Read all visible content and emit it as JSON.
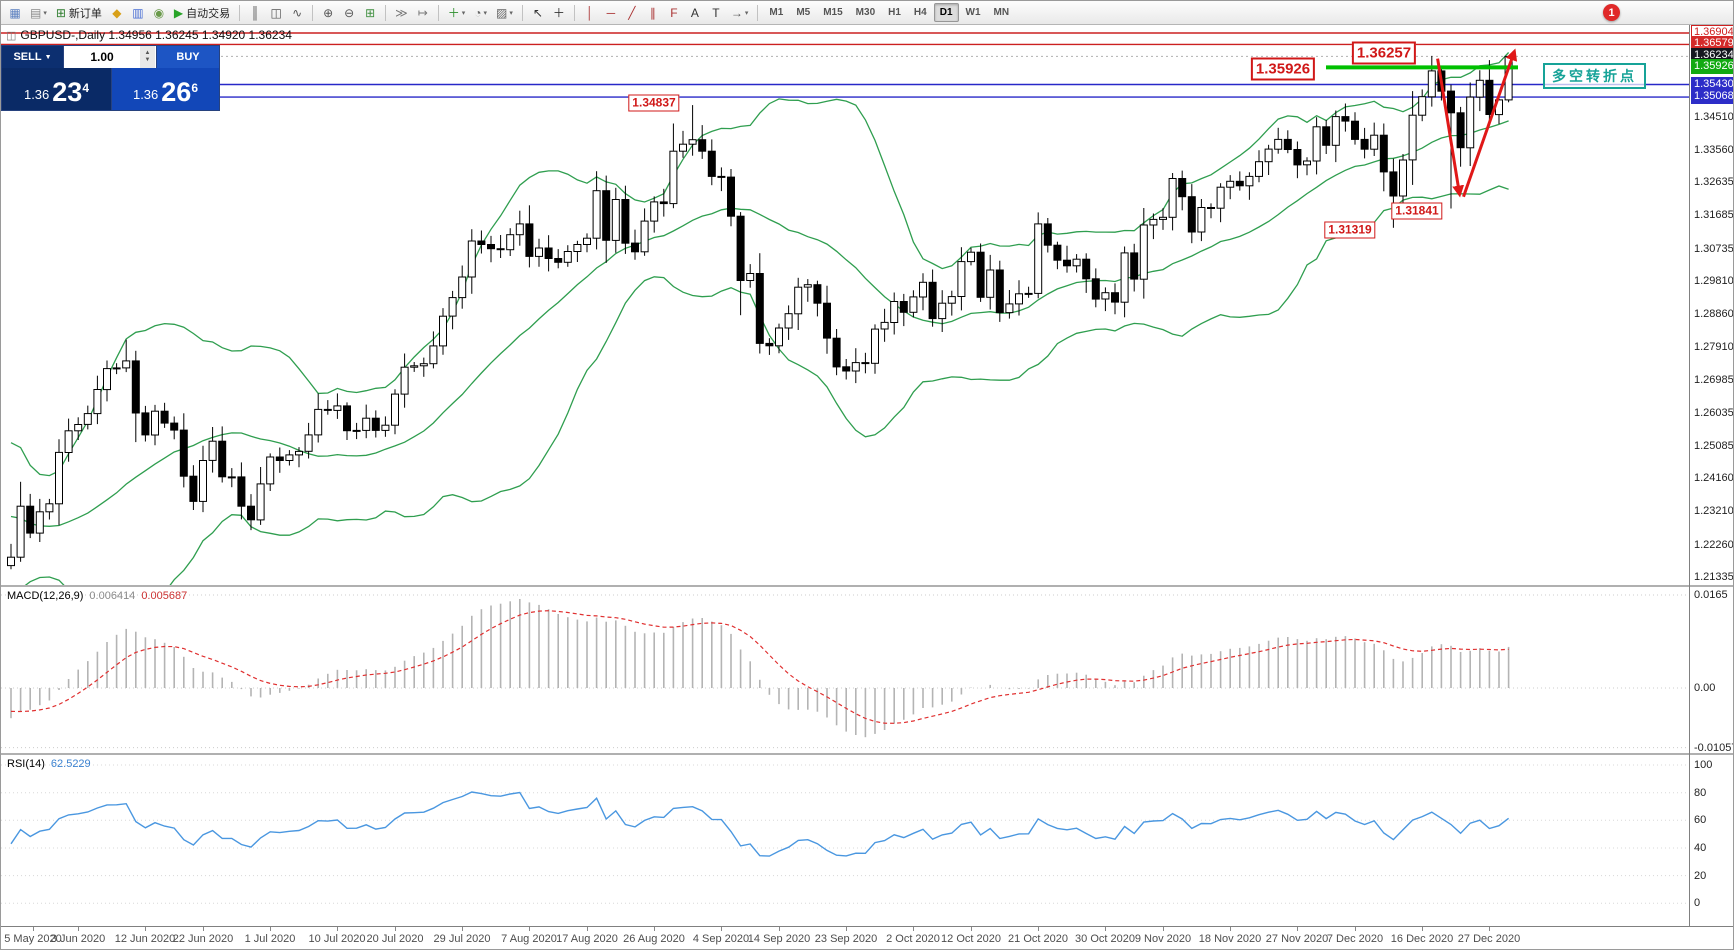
{
  "toolbar": {
    "notification_count": "1",
    "items": [
      {
        "kind": "icon",
        "name": "new-chart-icon",
        "glyph": "▦",
        "color": "#5a7fbf"
      },
      {
        "kind": "icon",
        "name": "profiles-icon",
        "glyph": "▤",
        "color": "#8a8a8a",
        "caret": true
      },
      {
        "kind": "icon",
        "name": "new-order-icon",
        "glyph": "⊞",
        "color": "#2f7d2f",
        "label": "新订单"
      },
      {
        "kind": "icon",
        "name": "market-watch-icon",
        "glyph": "◆",
        "color": "#d8a019"
      },
      {
        "kind": "icon",
        "name": "data-window-icon",
        "glyph": "▥",
        "color": "#4a6fd4"
      },
      {
        "kind": "icon",
        "name": "community-icon",
        "glyph": "◉",
        "color": "#6a9a4a"
      },
      {
        "kind": "icon",
        "name": "autotrading-icon",
        "glyph": "▶",
        "color": "#28a428",
        "label": "自动交易"
      },
      {
        "kind": "sep"
      },
      {
        "kind": "icon",
        "name": "bar-chart-icon",
        "glyph": "║",
        "color": "#555555"
      },
      {
        "kind": "icon",
        "name": "candlestick-chart-icon",
        "glyph": "◫",
        "color": "#555555"
      },
      {
        "kind": "icon",
        "name": "line-chart-icon",
        "glyph": "∿",
        "color": "#555555"
      },
      {
        "kind": "sep"
      },
      {
        "kind": "icon",
        "name": "zoom-in-icon",
        "glyph": "⊕",
        "color": "#555555"
      },
      {
        "kind": "icon",
        "name": "zoom-out-icon",
        "glyph": "⊖",
        "color": "#555555"
      },
      {
        "kind": "icon",
        "name": "tile-windows-icon",
        "glyph": "⊞",
        "color": "#3f8f3f"
      },
      {
        "kind": "sep"
      },
      {
        "kind": "icon",
        "name": "auto-scroll-icon",
        "glyph": "≫",
        "color": "#777777"
      },
      {
        "kind": "icon",
        "name": "chart-shift-icon",
        "glyph": "↦",
        "color": "#777777"
      },
      {
        "kind": "sep"
      },
      {
        "kind": "icon",
        "name": "indicators-icon",
        "glyph": "＋",
        "color": "#2e8f2e",
        "caret": true
      },
      {
        "kind": "icon",
        "name": "periods-icon",
        "glyph": "◔",
        "color": "#666666",
        "caret": true
      },
      {
        "kind": "icon",
        "name": "templates-icon",
        "glyph": "▨",
        "color": "#666666",
        "caret": true
      },
      {
        "kind": "sep"
      },
      {
        "kind": "icon",
        "name": "cursor-icon",
        "glyph": "↖",
        "color": "#333333"
      },
      {
        "kind": "icon",
        "name": "crosshair-icon",
        "glyph": "＋",
        "color": "#333333"
      },
      {
        "kind": "sep"
      },
      {
        "kind": "icon",
        "name": "vertical-line-icon",
        "glyph": "│",
        "color": "#aa3333"
      },
      {
        "kind": "icon",
        "name": "horizontal-line-icon",
        "glyph": "─",
        "color": "#aa3333"
      },
      {
        "kind": "icon",
        "name": "trendline-icon",
        "glyph": "╱",
        "color": "#aa3333"
      },
      {
        "kind": "icon",
        "name": "equidistant-channel-icon",
        "glyph": "∥",
        "color": "#aa3333"
      },
      {
        "kind": "icon",
        "name": "fibonacci-icon",
        "glyph": "F",
        "color": "#aa3333"
      },
      {
        "kind": "icon",
        "name": "text-icon",
        "glyph": "A",
        "color": "#333333"
      },
      {
        "kind": "icon",
        "name": "text-label-icon",
        "glyph": "T",
        "color": "#333333"
      },
      {
        "kind": "icon",
        "name": "arrows-icon",
        "glyph": "→",
        "color": "#555555",
        "caret": true
      },
      {
        "kind": "sep"
      },
      {
        "kind": "tf",
        "label": "M1"
      },
      {
        "kind": "tf",
        "label": "M5"
      },
      {
        "kind": "tf",
        "label": "M15"
      },
      {
        "kind": "tf",
        "label": "M30"
      },
      {
        "kind": "tf",
        "label": "H1"
      },
      {
        "kind": "tf",
        "label": "H4"
      },
      {
        "kind": "tf",
        "label": "D1",
        "active": true
      },
      {
        "kind": "tf",
        "label": "W1"
      },
      {
        "kind": "tf",
        "label": "MN"
      }
    ]
  },
  "chart": {
    "symbol_line": "GBPUSD-,Daily  1.34956 1.36245 1.34920 1.36234"
  },
  "trade_panel": {
    "sell_label": "SELL",
    "buy_label": "BUY",
    "volume": "1.00",
    "sell_big": "1.36",
    "sell_pips": "23",
    "sell_sup": "4",
    "buy_big": "1.36",
    "buy_pips": "26",
    "buy_sup": "6"
  },
  "macd": {
    "title": "MACD(12,26,9)",
    "value_main": "0.006414",
    "value_signal": "0.005687"
  },
  "rsi": {
    "title": "RSI(14)",
    "value": "62.5229"
  },
  "axes": {
    "price_ticks": [
      1.3451,
      1.3356,
      1.32635,
      1.31685,
      1.30735,
      1.2981,
      1.2886,
      1.2791,
      1.26985,
      1.26035,
      1.25085,
      1.2416,
      1.2321,
      1.2226,
      1.21335
    ],
    "price_markers": [
      {
        "text": "1.36904",
        "price": 1.36904,
        "bg": "#ffffff",
        "fg": "#d02020",
        "border": "#d02020"
      },
      {
        "text": "1.36579",
        "price": 1.36579,
        "bg": "#d42a2a",
        "fg": "#ffffff",
        "border": "#d42a2a"
      },
      {
        "text": "1.36234",
        "price": 1.36234,
        "bg": "#15171f",
        "fg": "#ffffff",
        "border": "#15171f"
      },
      {
        "text": "1.35926",
        "price": 1.35926,
        "bg": "#12a912",
        "fg": "#ffffff",
        "border": "#12a912"
      },
      {
        "text": "1.35430",
        "price": 1.3543,
        "bg": "#2d2dc8",
        "fg": "#ffffff",
        "border": "#2d2dc8"
      },
      {
        "text": "1.35068",
        "price": 1.35068,
        "bg": "#2d2dc8",
        "fg": "#ffffff",
        "border": "#2d2dc8"
      }
    ],
    "macd_ticks": [
      {
        "text": "0.0165",
        "v": 0.0165
      },
      {
        "text": "0.00",
        "v": 0
      },
      {
        "text": "-0.010571",
        "v": -0.010571
      }
    ],
    "rsi_ticks": [
      100,
      80,
      60,
      40,
      20,
      0
    ],
    "dates": [
      {
        "label": "5 May 2020",
        "idx": 2.3
      },
      {
        "label": "3 Jun 2020",
        "idx": 7
      },
      {
        "label": "12 Jun 2020",
        "idx": 14
      },
      {
        "label": "22 Jun 2020",
        "idx": 20
      },
      {
        "label": "1 Jul 2020",
        "idx": 27
      },
      {
        "label": "10 Jul 2020",
        "idx": 34
      },
      {
        "label": "20 Jul 2020",
        "idx": 40
      },
      {
        "label": "29 Jul 2020",
        "idx": 47
      },
      {
        "label": "7 Aug 2020",
        "idx": 54
      },
      {
        "label": "17 Aug 2020",
        "idx": 60
      },
      {
        "label": "26 Aug 2020",
        "idx": 67
      },
      {
        "label": "4 Sep 2020",
        "idx": 74
      },
      {
        "label": "14 Sep 2020",
        "idx": 80
      },
      {
        "label": "23 Sep 2020",
        "idx": 87
      },
      {
        "label": "2 Oct 2020",
        "idx": 94
      },
      {
        "label": "12 Oct 2020",
        "idx": 100
      },
      {
        "label": "21 Oct 2020",
        "idx": 107
      },
      {
        "label": "30 Oct 2020",
        "idx": 114
      },
      {
        "label": "9 Nov 2020",
        "idx": 120
      },
      {
        "label": "18 Nov 2020",
        "idx": 127
      },
      {
        "label": "27 Nov 2020",
        "idx": 134
      },
      {
        "label": "7 Dec 2020",
        "idx": 140
      },
      {
        "label": "16 Dec 2020",
        "idx": 147
      },
      {
        "label": "27 Dec 2020",
        "idx": 154
      }
    ]
  },
  "annotations": {
    "arrow_color": "#e01818",
    "price_labels": [
      {
        "text": "1.34837",
        "idx": 67,
        "price": 1.3489,
        "size": "md"
      },
      {
        "text": "1.35926",
        "idx": 132.5,
        "price": 1.3586,
        "size": "lg"
      },
      {
        "text": "1.36257",
        "idx": 143.0,
        "price": 1.3633,
        "size": "lg"
      },
      {
        "text": "1.31841",
        "idx": 146.5,
        "price": 1.3181,
        "size": "md"
      },
      {
        "text": "1.31319",
        "idx": 139.5,
        "price": 1.3128,
        "size": "md"
      }
    ],
    "cn_label": {
      "text": "多空转折点"
    },
    "hlines": [
      {
        "price": 1.36904,
        "color": "#cc2020",
        "w": 1.4
      },
      {
        "price": 1.36579,
        "color": "#cc2020",
        "w": 1.4
      },
      {
        "price": 1.3543,
        "color": "#2828c8",
        "w": 1.4
      },
      {
        "price": 1.35068,
        "color": "#2828c8",
        "w": 1.4
      }
    ],
    "bid_line": {
      "price": 1.36234,
      "color": "#b0b0b0"
    },
    "green_segment": {
      "price": 1.3592,
      "idx_from": 137.0,
      "idx_to": 157.0,
      "color": "#00c000",
      "w": 4
    },
    "arrows": [
      {
        "x1_idx": 148.6,
        "p1": 1.3617,
        "x2_idx": 150.9,
        "p2": 1.3228
      },
      {
        "x1_idx": 151.3,
        "p1": 1.3222,
        "x2_idx": 156.6,
        "p2": 1.3638
      }
    ]
  },
  "chart_data": {
    "type": "candlestick",
    "symbol": "GBPUSD",
    "timeframe": "Daily",
    "last_candle_ohlc": [
      1.34956,
      1.36245,
      1.3492,
      1.36234
    ],
    "ylim": [
      1.21335,
      1.36904
    ],
    "price_anchor": 1.36904,
    "price_scale": 3494,
    "indicators": [
      {
        "name": "Bollinger Bands",
        "period": 20,
        "deviation": 2
      },
      {
        "name": "MACD",
        "params": [
          12,
          26,
          9
        ],
        "last_values": [
          0.006414,
          0.005687
        ],
        "axis": [
          0.0165,
          0.0,
          -0.010571
        ]
      },
      {
        "name": "RSI",
        "period": 14,
        "last_value": 62.5229,
        "axis": [
          100,
          80,
          60,
          40,
          20,
          0
        ]
      }
    ],
    "colors": {
      "bb": "#2f9e4f",
      "up": "#ffffff",
      "down": "#000000",
      "macd_hist": "#b4b4b4",
      "macd_signal": "#e03030",
      "rsi": "#4a97e0"
    },
    "pre_closes": [
      1.2332,
      1.2273,
      1.2385,
      1.2454,
      1.2467,
      1.2513,
      1.262,
      1.251,
      1.2475,
      1.25,
      1.2442,
      1.2294,
      1.2372,
      1.232,
      1.2442,
      1.2553,
      1.246,
      1.2367,
      1.2445,
      1.2339,
      1.2336,
      1.2335,
      1.2298,
      1.234,
      1.2334,
      1.2255,
      1.2208,
      1.2168,
      1.2227,
      1.2232,
      1.2204,
      1.2234,
      1.2166
    ],
    "closes": [
      1.219,
      1.2336,
      1.2259,
      1.232,
      1.2343,
      1.249,
      1.2552,
      1.257,
      1.2601,
      1.267,
      1.273,
      1.2732,
      1.2752,
      1.2603,
      1.254,
      1.2608,
      1.2574,
      1.2554,
      1.2422,
      1.235,
      1.2467,
      1.2522,
      1.242,
      1.242,
      1.2336,
      1.2297,
      1.24,
      1.2477,
      1.2467,
      1.2483,
      1.2493,
      1.254,
      1.2613,
      1.261,
      1.2623,
      1.2552,
      1.2553,
      1.2588,
      1.2553,
      1.2568,
      1.2657,
      1.2734,
      1.2738,
      1.2744,
      1.2795,
      1.288,
      1.2933,
      1.2992,
      1.3095,
      1.3085,
      1.3073,
      1.307,
      1.3113,
      1.3144,
      1.3051,
      1.3075,
      1.3045,
      1.3034,
      1.3065,
      1.3085,
      1.3103,
      1.3239,
      1.3097,
      1.3214,
      1.3089,
      1.3064,
      1.3152,
      1.3207,
      1.3202,
      1.3352,
      1.3372,
      1.3385,
      1.3352,
      1.328,
      1.3278,
      1.3166,
      1.2982,
      1.3002,
      1.2802,
      1.2795,
      1.2846,
      1.2887,
      1.2963,
      1.297,
      1.2917,
      1.2817,
      1.2735,
      1.2723,
      1.2747,
      1.2745,
      1.2843,
      1.2862,
      1.2922,
      1.2891,
      1.2935,
      1.2977,
      1.2873,
      1.2917,
      1.2936,
      1.3036,
      1.3063,
      1.2934,
      1.3012,
      1.289,
      1.2915,
      1.2944,
      1.2945,
      1.3144,
      1.3083,
      1.304,
      1.3024,
      1.3043,
      1.2987,
      1.2929,
      1.2947,
      1.292,
      1.3061,
      1.2986,
      1.3141,
      1.3157,
      1.3163,
      1.3274,
      1.3222,
      1.3121,
      1.3191,
      1.3189,
      1.3249,
      1.3266,
      1.3253,
      1.328,
      1.3322,
      1.3358,
      1.3386,
      1.3357,
      1.3313,
      1.3324,
      1.3422,
      1.3369,
      1.3451,
      1.3438,
      1.3386,
      1.3358,
      1.3398,
      1.3293,
      1.3224,
      1.3327,
      1.3455,
      1.3508,
      1.3582,
      1.3524,
      1.3462,
      1.3362,
      1.3507,
      1.3555,
      1.3457,
      1.3499,
      1.36234
    ],
    "overrides": {
      "12": {
        "h": 1.2813
      },
      "71": {
        "h": 1.3484
      },
      "78": {
        "l": 1.2773
      },
      "107": {
        "h": 1.3177
      },
      "144": {
        "l": 1.3133
      },
      "148": {
        "h": 1.3625
      },
      "150": {
        "l": 1.3188
      },
      "156": {
        "h": 1.36245,
        "l": 1.3492
      }
    }
  }
}
